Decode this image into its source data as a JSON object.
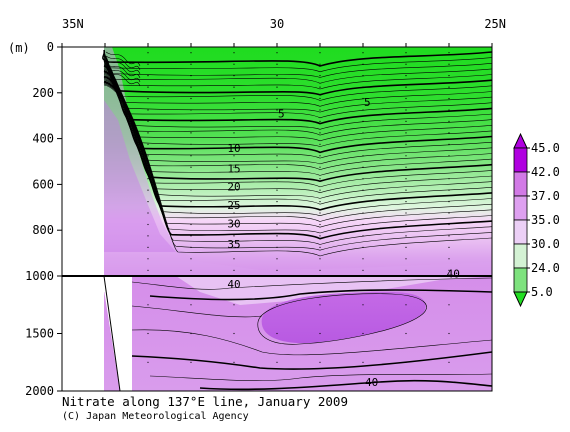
{
  "chart_data": {
    "type": "contour",
    "title": "Nitrate along 137°E line, January 2009",
    "credit": "(C) Japan Meteorological Agency",
    "x_axis": {
      "top_ticks": [
        "35N",
        "30",
        "25N"
      ],
      "lat_range": [
        35,
        25
      ]
    },
    "y_axis": {
      "unit_label": "(m)",
      "upper_ticks": [
        "0",
        "200",
        "400",
        "600",
        "800",
        "1000"
      ],
      "lower_ticks": [
        "1500",
        "2000"
      ],
      "upper_range": [
        0,
        1000
      ],
      "lower_range": [
        1000,
        2000
      ]
    },
    "colorbar": {
      "labels": [
        "45.0",
        "42.0",
        "37.0",
        "35.0",
        "30.0",
        "24.0",
        "5.0"
      ],
      "colors": [
        "#b000e0",
        "#d27ae6",
        "#dea0f0",
        "#ecd0f6",
        "#d4f2d4",
        "#7ee27e",
        "#22dd22"
      ]
    },
    "contour_labels": [
      {
        "text": "5",
        "lat": 29.9,
        "depth": 290
      },
      {
        "text": "5",
        "lat": 27.9,
        "depth": 240
      },
      {
        "text": "10",
        "lat": 31.0,
        "depth": 440
      },
      {
        "text": "15",
        "lat": 31.0,
        "depth": 530
      },
      {
        "text": "20",
        "lat": 31.0,
        "depth": 610
      },
      {
        "text": "25",
        "lat": 31.0,
        "depth": 690
      },
      {
        "text": "30",
        "lat": 31.0,
        "depth": 770
      },
      {
        "text": "35",
        "lat": 31.0,
        "depth": 860
      },
      {
        "text": "40",
        "lat": 31.0,
        "depth": 1070
      },
      {
        "text": "40",
        "lat": 25.9,
        "depth": 990
      },
      {
        "text": "40",
        "lat": 27.8,
        "depth": 1920
      }
    ]
  }
}
